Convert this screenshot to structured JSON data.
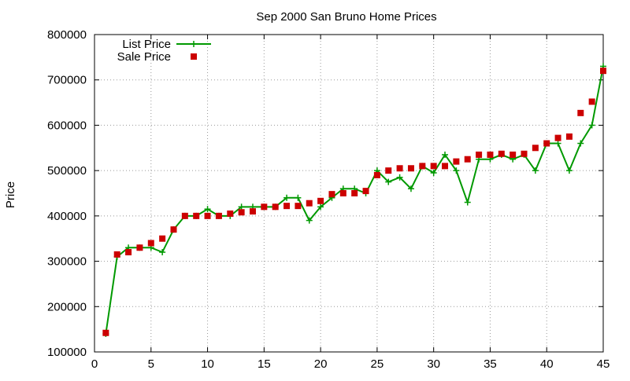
{
  "chart_data": {
    "type": "line",
    "title": "Sep 2000 San Bruno Home Prices",
    "xlabel": "",
    "ylabel": "Price",
    "xlim": [
      0,
      45
    ],
    "ylim": [
      100000,
      800000
    ],
    "x_ticks": [
      0,
      5,
      10,
      15,
      20,
      25,
      30,
      35,
      40,
      45
    ],
    "y_ticks": [
      100000,
      200000,
      300000,
      400000,
      500000,
      600000,
      700000,
      800000
    ],
    "grid": true,
    "legend_position": "top-left",
    "series": [
      {
        "name": "List Price",
        "kind": "line-with-plus-markers",
        "color": "#009900",
        "x": [
          1,
          2,
          3,
          4,
          5,
          6,
          7,
          8,
          9,
          10,
          11,
          12,
          13,
          14,
          15,
          16,
          17,
          18,
          19,
          20,
          21,
          22,
          23,
          24,
          25,
          26,
          27,
          28,
          29,
          30,
          31,
          32,
          33,
          34,
          35,
          36,
          37,
          38,
          39,
          40,
          41,
          42,
          43,
          44,
          45
        ],
        "values": [
          140000,
          310000,
          330000,
          330000,
          330000,
          320000,
          370000,
          400000,
          400000,
          415000,
          400000,
          400000,
          420000,
          420000,
          420000,
          420000,
          440000,
          440000,
          390000,
          420000,
          440000,
          460000,
          460000,
          450000,
          500000,
          475000,
          485000,
          460000,
          510000,
          495000,
          535000,
          500000,
          430000,
          525000,
          525000,
          535000,
          525000,
          535000,
          500000,
          560000,
          560000,
          500000,
          560000,
          600000,
          730000
        ]
      },
      {
        "name": "Sale Price",
        "kind": "square-points",
        "color": "#cc0000",
        "x": [
          1,
          2,
          3,
          4,
          5,
          6,
          7,
          8,
          9,
          10,
          11,
          12,
          13,
          14,
          15,
          16,
          17,
          18,
          19,
          20,
          21,
          22,
          23,
          24,
          25,
          26,
          27,
          28,
          29,
          30,
          31,
          32,
          33,
          34,
          35,
          36,
          37,
          38,
          39,
          40,
          41,
          42,
          43,
          44,
          45
        ],
        "values": [
          142000,
          315000,
          320000,
          330000,
          340000,
          350000,
          370000,
          400000,
          400000,
          400000,
          400000,
          405000,
          408000,
          410000,
          420000,
          420000,
          422000,
          422000,
          428000,
          433000,
          448000,
          450000,
          450000,
          455000,
          490000,
          500000,
          505000,
          505000,
          510000,
          510000,
          510000,
          520000,
          525000,
          535000,
          535000,
          537000,
          535000,
          537000,
          550000,
          560000,
          572000,
          575000,
          627000,
          652000,
          720000
        ]
      }
    ]
  }
}
